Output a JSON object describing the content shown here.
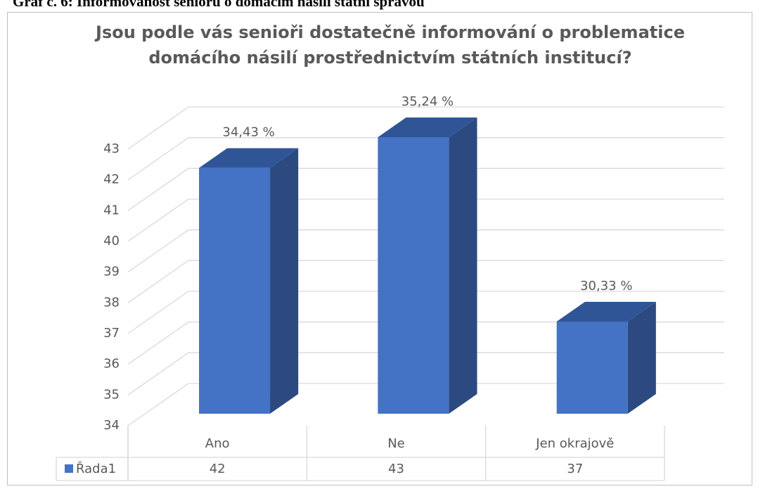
{
  "caption": "Graf č. 6: Informovanost seniorů o domácím násilí státní správou",
  "chart_data": {
    "type": "bar3d",
    "title": "Jsou podle vás senioři dostatečně informování o problematice domácího násilí prostřednictvím státních institucí?",
    "categories": [
      "Ano",
      "Ne",
      "Jen okrajově"
    ],
    "series": [
      {
        "name": "Řada1",
        "color": "#4472c4",
        "values": [
          42,
          43,
          37
        ]
      }
    ],
    "annotations": [
      "34,43 %",
      "35,24 %",
      "30,33 %"
    ],
    "ylim": [
      34,
      43
    ],
    "yticks": [
      34,
      35,
      36,
      37,
      38,
      39,
      40,
      41,
      42,
      43
    ],
    "grid": true,
    "data_table": true
  }
}
